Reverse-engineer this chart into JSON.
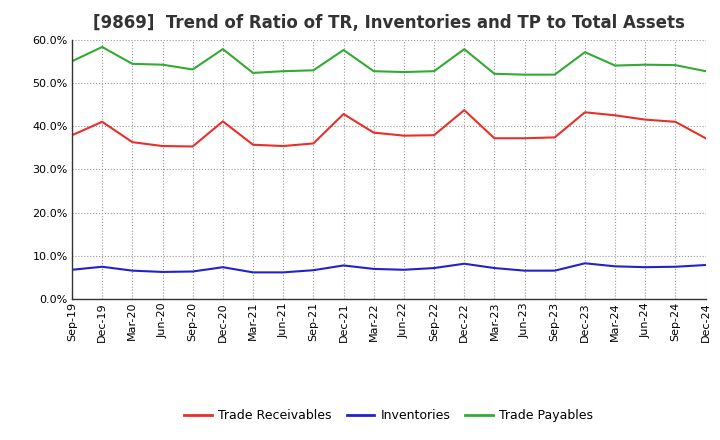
{
  "title": "[9869]  Trend of Ratio of TR, Inventories and TP to Total Assets",
  "x_labels": [
    "Sep-19",
    "Dec-19",
    "Mar-20",
    "Jun-20",
    "Sep-20",
    "Dec-20",
    "Mar-21",
    "Jun-21",
    "Sep-21",
    "Dec-21",
    "Mar-22",
    "Jun-22",
    "Sep-22",
    "Dec-22",
    "Mar-23",
    "Jun-23",
    "Sep-23",
    "Dec-23",
    "Mar-24",
    "Jun-24",
    "Sep-24",
    "Dec-24"
  ],
  "trade_receivables": [
    0.379,
    0.41,
    0.363,
    0.354,
    0.353,
    0.411,
    0.357,
    0.354,
    0.36,
    0.428,
    0.385,
    0.378,
    0.379,
    0.437,
    0.372,
    0.372,
    0.374,
    0.432,
    0.425,
    0.415,
    0.41,
    0.372
  ],
  "inventories": [
    0.068,
    0.075,
    0.066,
    0.063,
    0.064,
    0.074,
    0.062,
    0.062,
    0.067,
    0.078,
    0.07,
    0.068,
    0.072,
    0.082,
    0.072,
    0.066,
    0.066,
    0.083,
    0.076,
    0.074,
    0.075,
    0.079
  ],
  "trade_payables": [
    0.55,
    0.583,
    0.544,
    0.542,
    0.531,
    0.578,
    0.523,
    0.527,
    0.529,
    0.576,
    0.527,
    0.525,
    0.527,
    0.578,
    0.521,
    0.519,
    0.519,
    0.571,
    0.54,
    0.542,
    0.541,
    0.527
  ],
  "tr_color": "#e8302a",
  "inv_color": "#2222cc",
  "tp_color": "#33aa33",
  "ylim": [
    0.0,
    0.6
  ],
  "yticks": [
    0.0,
    0.1,
    0.2,
    0.3,
    0.4,
    0.5,
    0.6
  ],
  "legend_labels": [
    "Trade Receivables",
    "Inventories",
    "Trade Payables"
  ],
  "bg_color": "#ffffff",
  "grid_color": "#999999",
  "title_fontsize": 12,
  "tick_fontsize": 8,
  "legend_fontsize": 9
}
